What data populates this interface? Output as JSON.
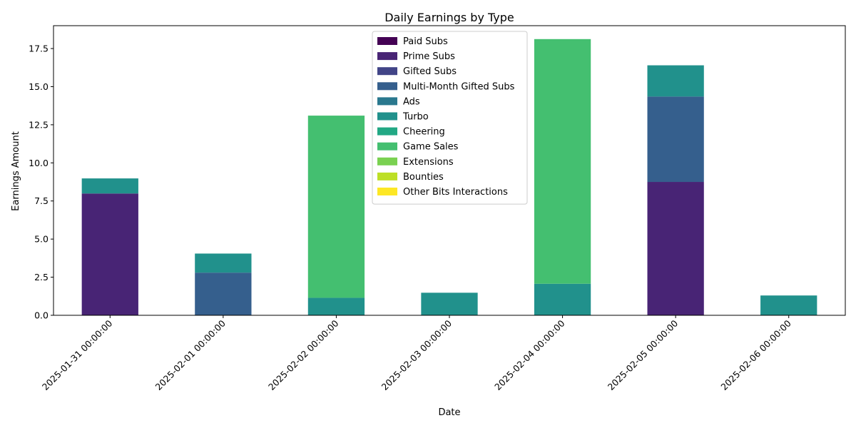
{
  "chart_data": {
    "type": "bar",
    "stacked": true,
    "title": "Daily Earnings by Type",
    "xlabel": "Date",
    "ylabel": "Earnings Amount",
    "ylim": [
      0,
      19.0
    ],
    "yticks": [
      "0.0",
      "2.5",
      "5.0",
      "7.5",
      "10.0",
      "12.5",
      "15.0",
      "17.5"
    ],
    "yticks_values": [
      0,
      2.5,
      5.0,
      7.5,
      10.0,
      12.5,
      15.0,
      17.5
    ],
    "grid": false,
    "legend_position": "upper-center",
    "categories": [
      "2025-01-31 00:00:00",
      "2025-02-01 00:00:00",
      "2025-02-02 00:00:00",
      "2025-02-03 00:00:00",
      "2025-02-04 00:00:00",
      "2025-02-05 00:00:00",
      "2025-02-06 00:00:00"
    ],
    "series": [
      {
        "name": "Paid Subs",
        "color": "#440154",
        "values": [
          0,
          0,
          0,
          0,
          0,
          0,
          0
        ]
      },
      {
        "name": "Prime Subs",
        "color": "#482475",
        "values": [
          7.99,
          0,
          0,
          0,
          0,
          8.75,
          0
        ]
      },
      {
        "name": "Gifted Subs",
        "color": "#414487",
        "values": [
          0,
          0,
          0,
          0,
          0,
          0,
          0
        ]
      },
      {
        "name": "Multi-Month Gifted Subs",
        "color": "#355f8d",
        "values": [
          0,
          2.8,
          0,
          0,
          0,
          5.6,
          0
        ]
      },
      {
        "name": "Ads",
        "color": "#2a788e",
        "values": [
          0,
          0,
          0,
          0,
          0,
          0,
          0
        ]
      },
      {
        "name": "Turbo",
        "color": "#21918c",
        "values": [
          0.99,
          1.25,
          1.15,
          1.48,
          2.07,
          2.05,
          1.3
        ]
      },
      {
        "name": "Cheering",
        "color": "#22a884",
        "values": [
          0,
          0,
          0,
          0,
          0,
          0,
          0
        ]
      },
      {
        "name": "Game Sales",
        "color": "#44bf70",
        "values": [
          0,
          0,
          11.95,
          0,
          16.05,
          0,
          0
        ]
      },
      {
        "name": "Extensions",
        "color": "#7ad151",
        "values": [
          0,
          0,
          0,
          0,
          0,
          0,
          0
        ]
      },
      {
        "name": "Bounties",
        "color": "#bddf26",
        "values": [
          0,
          0,
          0,
          0,
          0,
          0,
          0
        ]
      },
      {
        "name": "Other Bits Interactions",
        "color": "#fde725",
        "values": [
          0,
          0,
          0,
          0,
          0,
          0,
          0
        ]
      }
    ]
  }
}
